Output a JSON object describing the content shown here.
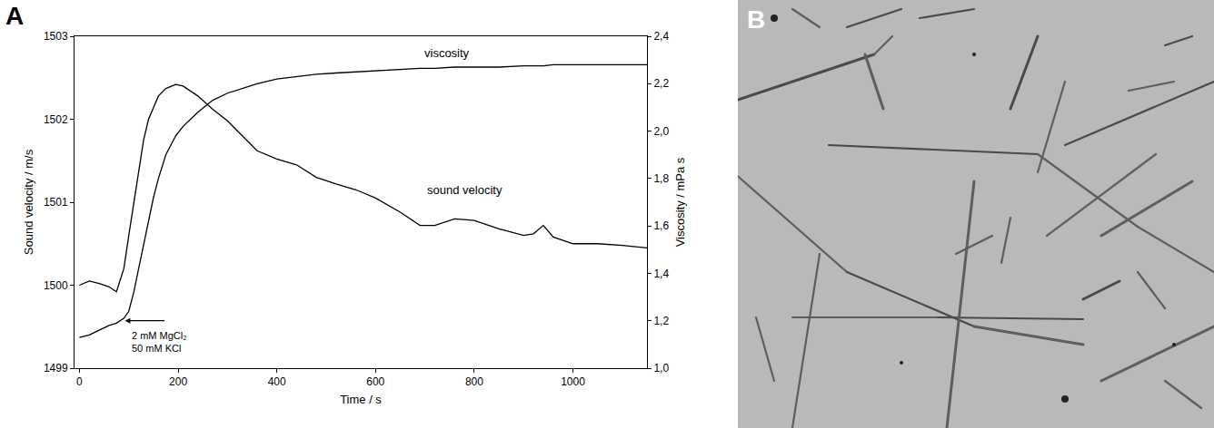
{
  "chart_data": {
    "type": "line",
    "panel_label": "A",
    "x_label": "Time / s",
    "y_label": "Sound velocity / m/s",
    "y2_label": "Viscosity / mPa s",
    "xlim": [
      -10,
      1150
    ],
    "xticks": [
      0,
      200,
      400,
      600,
      800,
      1000
    ],
    "ylim": [
      1499,
      1503
    ],
    "yticks": [
      1499,
      1500,
      1501,
      1502,
      1503
    ],
    "y2lim": [
      1.0,
      2.4
    ],
    "y2ticks": [
      {
        "value": 1.0,
        "label": "1,0"
      },
      {
        "value": 1.2,
        "label": "1,2"
      },
      {
        "value": 1.4,
        "label": "1,4"
      },
      {
        "value": 1.6,
        "label": "1,6"
      },
      {
        "value": 1.8,
        "label": "1,8"
      },
      {
        "value": 2.0,
        "label": "2,0"
      },
      {
        "value": 2.2,
        "label": "2,2"
      },
      {
        "value": 2.4,
        "label": "2,4"
      }
    ],
    "grid": false,
    "x": [
      0,
      20,
      40,
      60,
      75,
      90,
      100,
      110,
      120,
      130,
      140,
      150,
      160,
      175,
      195,
      210,
      240,
      270,
      300,
      330,
      360,
      400,
      440,
      480,
      520,
      560,
      600,
      650,
      690,
      720,
      760,
      800,
      850,
      900,
      920,
      940,
      960,
      1000,
      1050,
      1100,
      1150
    ],
    "series": [
      {
        "name": "sound velocity",
        "color": "#000000",
        "axis": "y",
        "label_at": {
          "x": 780,
          "y": 1501.15
        },
        "values": [
          1500.0,
          1500.05,
          1500.02,
          1499.98,
          1499.92,
          1500.2,
          1500.6,
          1501.0,
          1501.4,
          1501.75,
          1502.0,
          1502.15,
          1502.28,
          1502.37,
          1502.42,
          1502.4,
          1502.28,
          1502.12,
          1501.98,
          1501.8,
          1501.62,
          1501.52,
          1501.45,
          1501.3,
          1501.22,
          1501.15,
          1501.05,
          1500.88,
          1500.72,
          1500.72,
          1500.8,
          1500.78,
          1500.68,
          1500.6,
          1500.62,
          1500.72,
          1500.58,
          1500.5,
          1500.5,
          1500.48,
          1500.45
        ]
      },
      {
        "name": "viscosity",
        "color": "#000000",
        "axis": "y2",
        "label_at": {
          "x": 745,
          "y": 2.33
        },
        "values": [
          1.13,
          1.14,
          1.16,
          1.18,
          1.19,
          1.21,
          1.24,
          1.32,
          1.42,
          1.52,
          1.62,
          1.72,
          1.8,
          1.9,
          1.98,
          2.02,
          2.08,
          2.13,
          2.16,
          2.18,
          2.2,
          2.22,
          2.23,
          2.24,
          2.245,
          2.25,
          2.255,
          2.26,
          2.265,
          2.265,
          2.27,
          2.27,
          2.27,
          2.275,
          2.275,
          2.275,
          2.28,
          2.28,
          2.28,
          2.28,
          2.28
        ]
      }
    ],
    "annotations": [
      {
        "lines": [
          "2 mM MgCl₂",
          "50 mM KCl"
        ],
        "x": 92,
        "y": 1.2,
        "axis": "y2"
      }
    ]
  },
  "panel_b": {
    "label": "B"
  }
}
